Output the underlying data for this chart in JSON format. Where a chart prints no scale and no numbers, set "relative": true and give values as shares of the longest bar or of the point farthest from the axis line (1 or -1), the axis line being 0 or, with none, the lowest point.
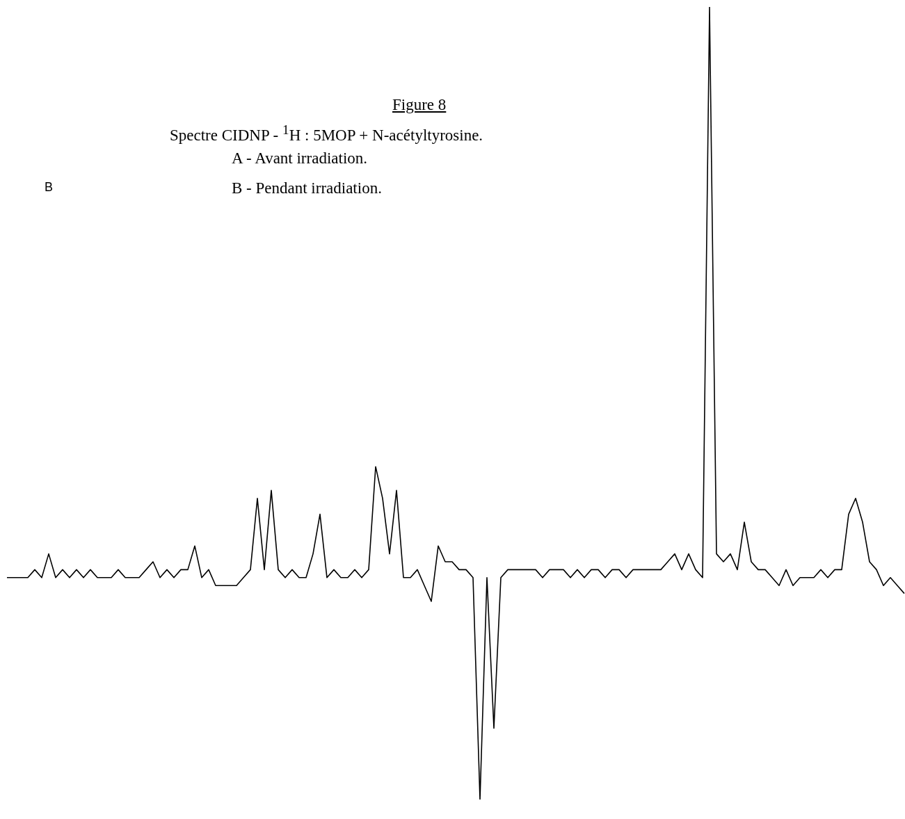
{
  "chart_data": {
    "type": "line",
    "title": "Figure 8",
    "subtitle": "Spectre CIDNP - $^{1}$H : 5MOP + N-acétyltyrosine.",
    "annotations": [
      "A - Avant irradiation.",
      "B - Pendant irradiation.",
      "B"
    ],
    "relative": true,
    "marker": "none",
    "line_style": "solid",
    "categories": [
      null,
      null,
      null,
      null,
      null,
      null,
      null,
      null,
      null,
      null,
      null,
      null,
      null,
      null,
      null,
      null,
      null,
      null,
      null,
      null,
      null,
      null,
      null,
      null,
      null,
      null,
      null,
      null,
      null,
      null,
      null,
      null,
      null,
      null,
      null,
      null,
      null,
      null,
      null,
      null,
      null,
      null,
      null,
      null,
      null,
      null,
      null,
      null,
      null,
      null,
      null,
      null,
      null,
      null,
      null,
      null,
      null,
      null,
      null,
      null,
      null,
      null,
      null,
      null,
      null,
      null,
      null,
      null,
      null,
      null,
      null,
      null,
      null,
      null,
      null,
      null,
      null,
      null,
      null,
      null,
      null,
      null,
      null,
      null,
      null,
      null,
      null,
      null,
      null,
      null,
      null,
      null,
      null,
      null,
      null,
      null,
      null,
      null,
      null,
      null,
      null,
      null,
      null,
      null,
      null,
      null,
      null,
      null,
      null,
      null,
      null,
      null,
      null,
      null,
      null,
      null,
      null,
      null,
      null,
      null,
      null,
      null,
      null,
      null,
      null,
      null,
      null,
      null,
      null,
      null
    ],
    "series": [
      {
        "color": "#000000",
        "values": [
          0.28,
          0.28,
          0.28,
          0.28,
          0.29,
          0.28,
          0.31,
          0.28,
          0.29,
          0.28,
          0.29,
          0.28,
          0.29,
          0.28,
          0.28,
          0.28,
          0.29,
          0.28,
          0.28,
          0.28,
          0.29,
          0.3,
          0.28,
          0.29,
          0.28,
          0.29,
          0.29,
          0.32,
          0.28,
          0.29,
          0.27,
          0.27,
          0.27,
          0.27,
          0.28,
          0.29,
          0.38,
          0.29,
          0.39,
          0.29,
          0.28,
          0.29,
          0.28,
          0.28,
          0.31,
          0.36,
          0.28,
          0.29,
          0.28,
          0.28,
          0.29,
          0.28,
          0.29,
          0.42,
          0.38,
          0.31,
          0.39,
          0.28,
          0.28,
          0.29,
          0.27,
          0.25,
          0.32,
          0.3,
          0.3,
          0.29,
          0.29,
          0.28,
          0,
          0.28,
          0.09,
          0.28,
          0.29,
          0.29,
          0.29,
          0.29,
          0.29,
          0.28,
          0.29,
          0.29,
          0.29,
          0.28,
          0.29,
          0.28,
          0.29,
          0.29,
          0.28,
          0.29,
          0.29,
          0.28,
          0.29,
          0.29,
          0.29,
          0.29,
          0.29,
          0.3,
          0.31,
          0.29,
          0.31,
          0.29,
          0.28,
          1,
          0.31,
          0.3,
          0.31,
          0.29,
          0.35,
          0.3,
          0.29,
          0.29,
          0.28,
          0.27,
          0.29,
          0.27,
          0.28,
          0.28,
          0.28,
          0.29,
          0.28,
          0.29,
          0.29,
          0.36,
          0.38,
          0.35,
          0.3,
          0.29,
          0.27,
          0.28,
          0.27,
          0.26
        ]
      }
    ]
  }
}
